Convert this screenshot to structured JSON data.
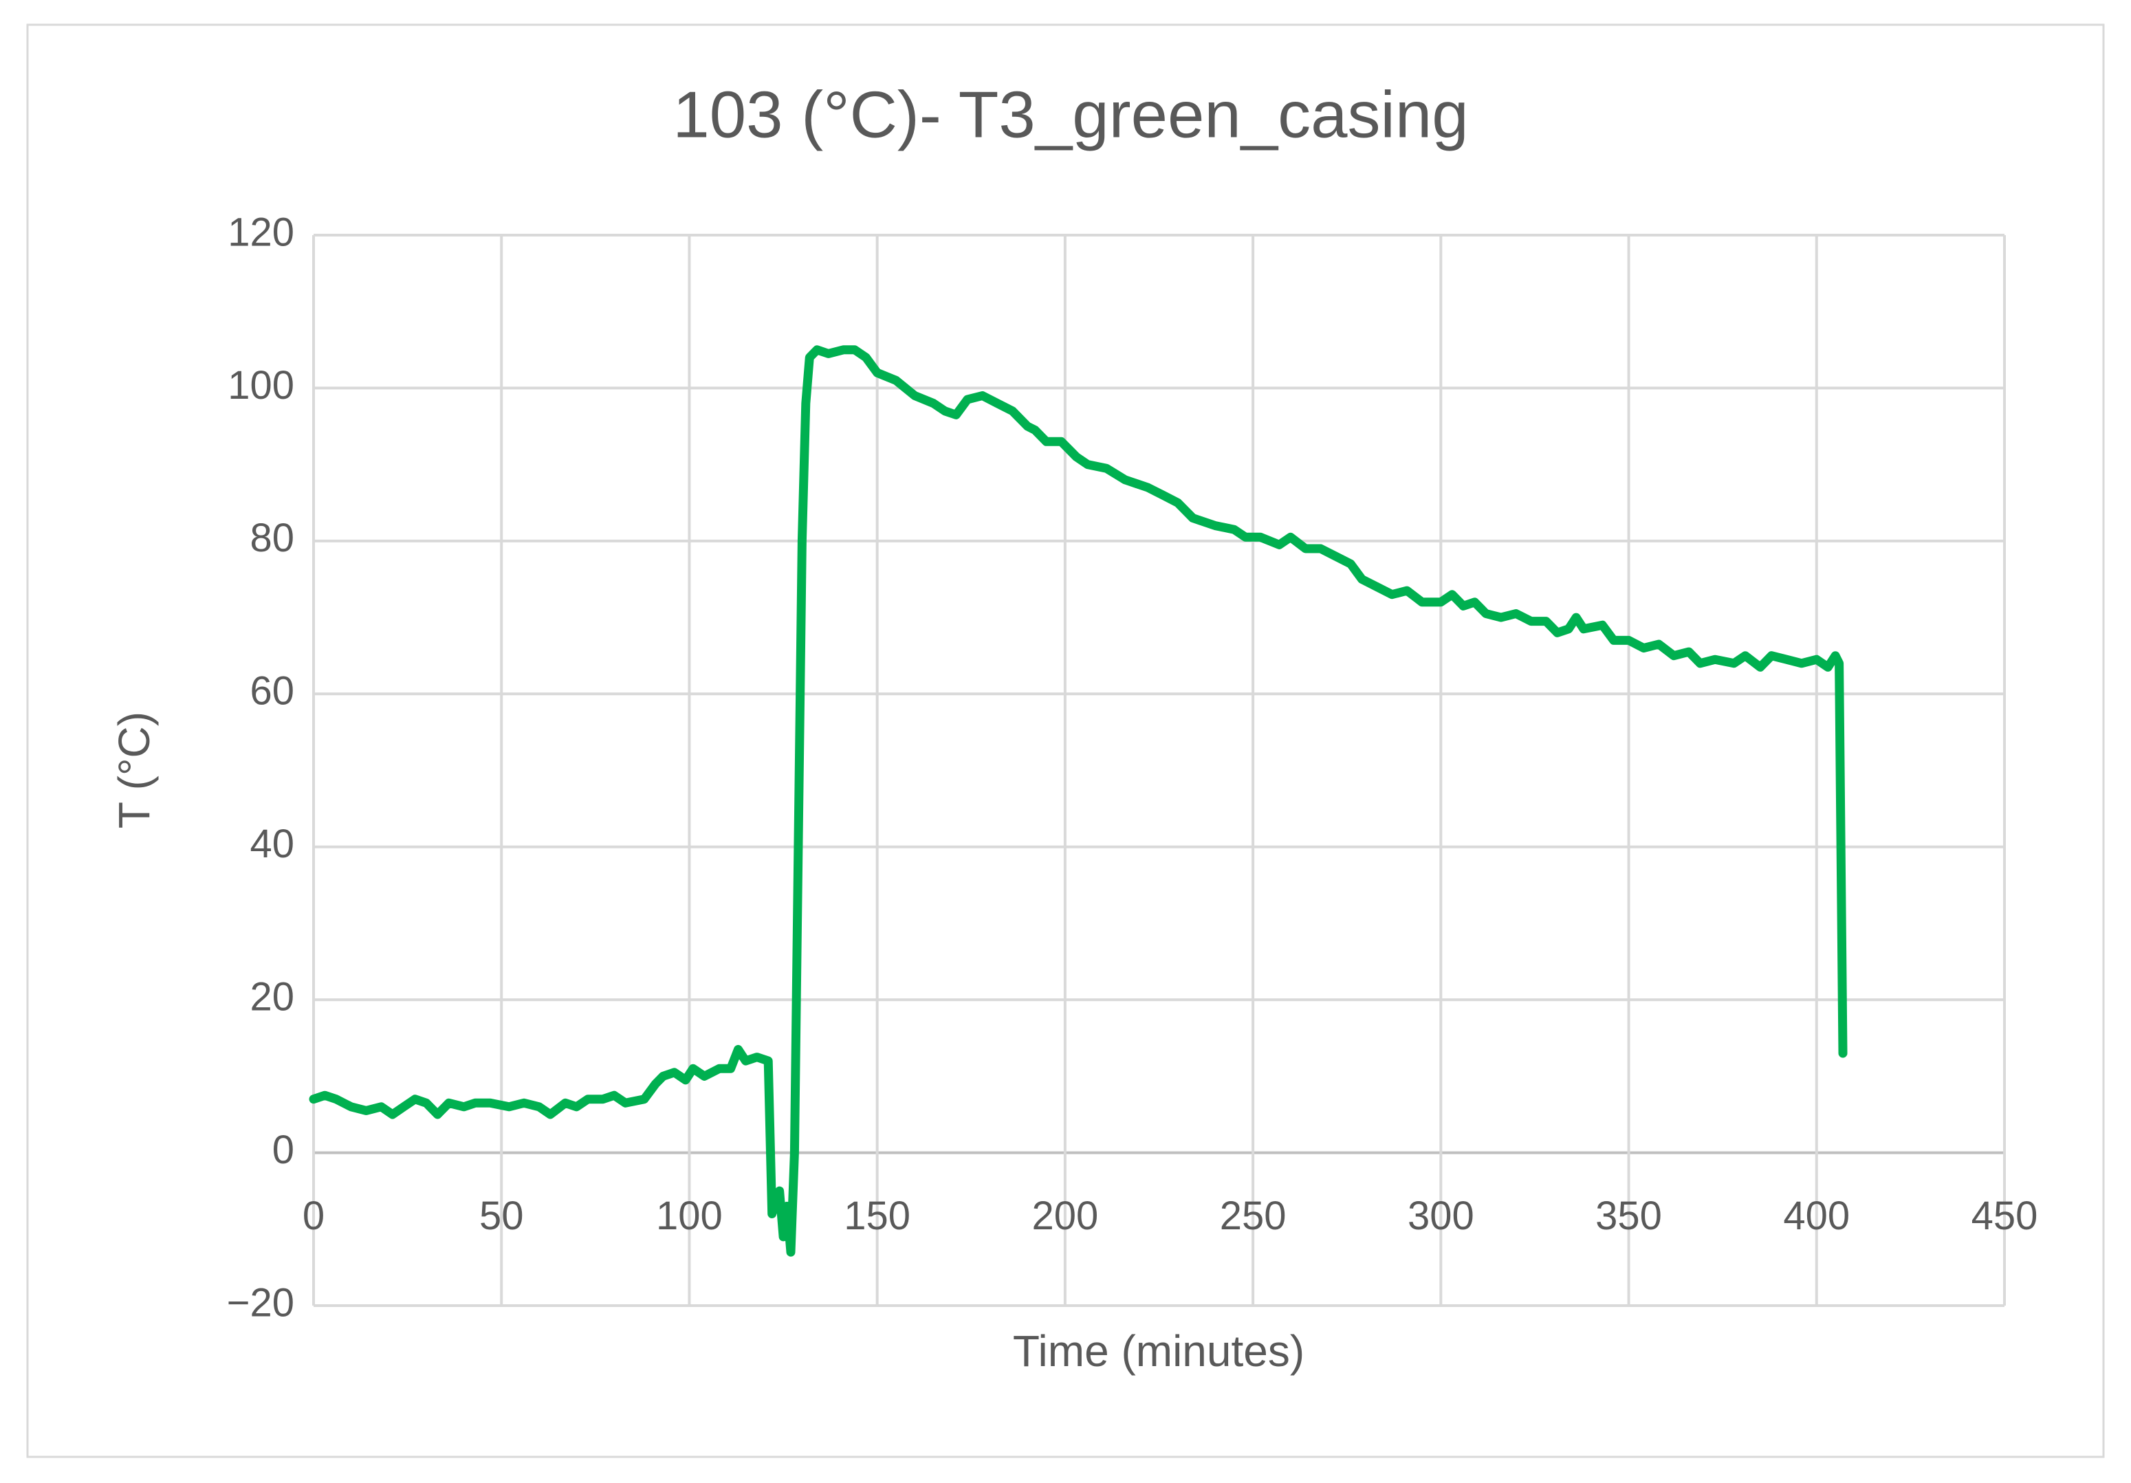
{
  "chart_data": {
    "type": "line",
    "title": "103 (°C)- T3_green_casing",
    "x_label": "Time (minutes)",
    "y_label": "T (°C)",
    "xlim": [
      0,
      450
    ],
    "xticks": [
      0,
      50,
      100,
      150,
      200,
      250,
      300,
      350,
      400,
      450
    ],
    "ylim": [
      -20,
      120
    ],
    "yticks": [
      {
        "value": -20,
        "label": "−20"
      },
      0,
      20,
      40,
      60,
      80,
      100,
      120
    ],
    "grid": true,
    "x": [
      0,
      3,
      6,
      10,
      14,
      18,
      21,
      24,
      27,
      30,
      33,
      36,
      40,
      43,
      47,
      52,
      56,
      60,
      63,
      67,
      70,
      73,
      77,
      80,
      83,
      88,
      91,
      93,
      96,
      99,
      101,
      104,
      108,
      111,
      113,
      115,
      118,
      121,
      122,
      124,
      125,
      126,
      127,
      128,
      129,
      130,
      131,
      132,
      134,
      137,
      141,
      144,
      147,
      150,
      155,
      160,
      165,
      168,
      171,
      174,
      178,
      182,
      186,
      190,
      192,
      195,
      199,
      203,
      206,
      211,
      216,
      222,
      226,
      230,
      234,
      240,
      245,
      248,
      252,
      257,
      260,
      264,
      268,
      272,
      276,
      279,
      283,
      287,
      291,
      295,
      300,
      303,
      306,
      309,
      312,
      316,
      320,
      324,
      328,
      331,
      334,
      336,
      338,
      343,
      346,
      350,
      354,
      358,
      362,
      366,
      369,
      373,
      378,
      381,
      385,
      388,
      392,
      396,
      400,
      403,
      405,
      406,
      407
    ],
    "series": [
      {
        "name": "T3_green_casing",
        "color": "#00b050",
        "values": [
          7,
          7.5,
          7,
          6,
          5.5,
          6,
          5,
          6,
          7,
          6.5,
          5,
          6.5,
          6,
          6.5,
          6.5,
          6,
          6.5,
          6,
          5,
          6.5,
          6,
          7,
          7,
          7.5,
          6.5,
          7,
          9,
          10,
          10.5,
          9.5,
          11,
          10,
          11,
          11,
          13.5,
          12,
          12.5,
          12,
          -8,
          -5,
          -11,
          -7,
          -13,
          0,
          40,
          80,
          98,
          104,
          105,
          104.5,
          105,
          105,
          104,
          102,
          101,
          99,
          98,
          97,
          96.5,
          98.5,
          99,
          98,
          97,
          95,
          94.5,
          93,
          93,
          91,
          90,
          89.5,
          88,
          87,
          86,
          85,
          83,
          82,
          81.5,
          80.5,
          80.5,
          79.5,
          80.5,
          79,
          79,
          78,
          77,
          75,
          74,
          73,
          73.5,
          72,
          72,
          73,
          71.5,
          72,
          70.5,
          70,
          70.5,
          69.5,
          69.5,
          68,
          68.5,
          70,
          68.5,
          69,
          67,
          67,
          66,
          66.5,
          65,
          65.5,
          64,
          64.5,
          64,
          65,
          63.5,
          65,
          64.5,
          64,
          64.5,
          63.5,
          65,
          64,
          13
        ]
      }
    ]
  }
}
